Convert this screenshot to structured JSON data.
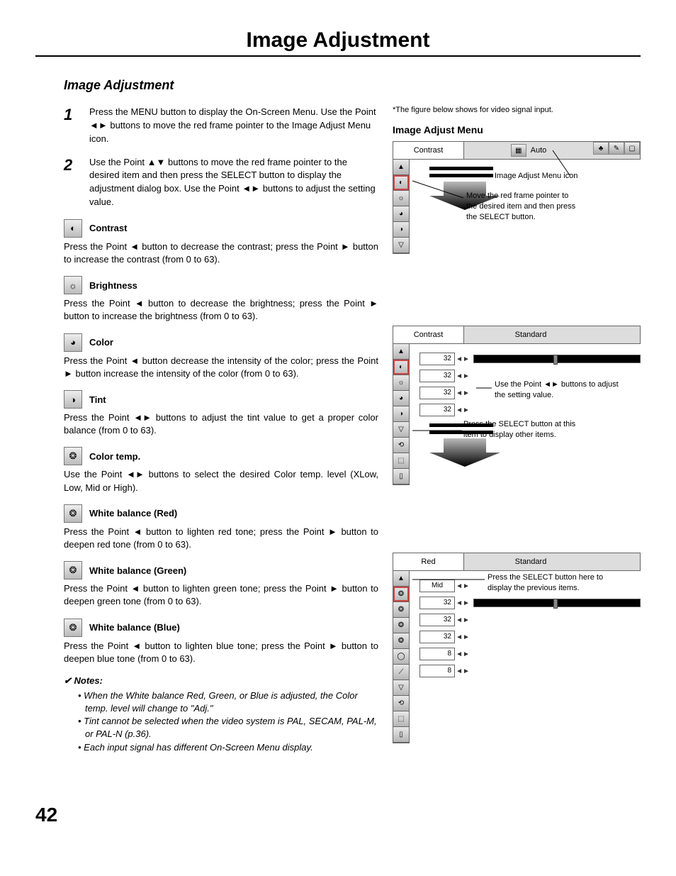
{
  "page_title": "Image Adjustment",
  "section_title": "Image Adjustment",
  "page_number": "42",
  "steps": [
    {
      "num": "1",
      "text": "Press the MENU button to display the On-Screen Menu. Use the Point ◄► buttons to move the red frame pointer to the Image Adjust Menu icon."
    },
    {
      "num": "2",
      "text": "Use the Point ▲▼ buttons to move the red frame pointer to the desired item and then press the SELECT button to display the adjustment dialog box. Use the Point ◄► buttons to adjust the setting value."
    }
  ],
  "settings": [
    {
      "icon": "◐",
      "title": "Contrast",
      "desc": "Press the Point ◄ button to decrease the contrast; press the Point ► button to increase the contrast (from 0 to 63)."
    },
    {
      "icon": "☼",
      "title": "Brightness",
      "desc": "Press the Point ◄ button to decrease the brightness; press the Point ► button to increase the brightness (from 0 to 63)."
    },
    {
      "icon": "◕",
      "title": "Color",
      "desc": "Press the Point ◄ button decrease the intensity of the color; press the Point ► button increase the intensity of the color (from 0 to 63)."
    },
    {
      "icon": "◑",
      "title": "Tint",
      "desc": "Press the Point ◄► buttons to adjust the tint value to get a proper color balance (from 0 to 63)."
    },
    {
      "icon": "❂",
      "title": "Color temp.",
      "desc": "Use the Point ◄► buttons to select the desired Color temp. level (XLow, Low, Mid or High)."
    },
    {
      "icon": "❂",
      "title": "White balance (Red)",
      "desc": "Press the Point ◄ button to lighten red tone; press the Point ► button to deepen red tone (from 0 to 63)."
    },
    {
      "icon": "❂",
      "title": "White balance (Green)",
      "desc": "Press the Point ◄ button to lighten green tone; press the Point ► button to deepen green tone (from 0 to 63)."
    },
    {
      "icon": "❂",
      "title": "White balance (Blue)",
      "desc": "Press the Point ◄ button to lighten blue tone; press the Point ► button to deepen blue tone (from 0 to 63)."
    }
  ],
  "notes_title": "✔ Notes:",
  "notes": [
    "When the White balance Red, Green, or Blue is adjusted, the Color temp. level will change to \"Adj.\"",
    "Tint cannot be selected when the video system is PAL, SECAM, PAL-M, or PAL-N (p.36).",
    "Each input signal has different On-Screen Menu display."
  ],
  "footnote": "*The figure below shows for video signal input.",
  "menu_heading": "Image Adjust Menu",
  "panel1": {
    "top_label": "Contrast",
    "top_mode": "Auto",
    "rail": [
      "▲",
      "◐",
      "☼",
      "◕",
      "◑",
      "▽"
    ],
    "callout_icon": "Image Adjust Menu icon",
    "callout_move": "Move the red frame pointer to the desired item and then press the SELECT button."
  },
  "panel2": {
    "top_label": "Contrast",
    "top_mode": "Standard",
    "rail": [
      "▲",
      "◐",
      "☼",
      "◕",
      "◑",
      "▽",
      "⟲",
      "⬚",
      "▯"
    ],
    "values": [
      "32",
      "32",
      "32",
      "32"
    ],
    "callout_adjust": "Use the Point ◄► buttons to adjust the setting value.",
    "callout_select": "Press the SELECT button at this item to display other items."
  },
  "panel3": {
    "top_label": "Red",
    "top_mode": "Standard",
    "rail": [
      "▲",
      "❂",
      "❂",
      "❂",
      "❂",
      "◯",
      "⟋",
      "▽",
      "⟲",
      "⬚",
      "▯"
    ],
    "values": [
      "Mid",
      "32",
      "32",
      "32",
      "8",
      "8"
    ],
    "callout_prev": "Press the SELECT button here to display the previous items."
  }
}
